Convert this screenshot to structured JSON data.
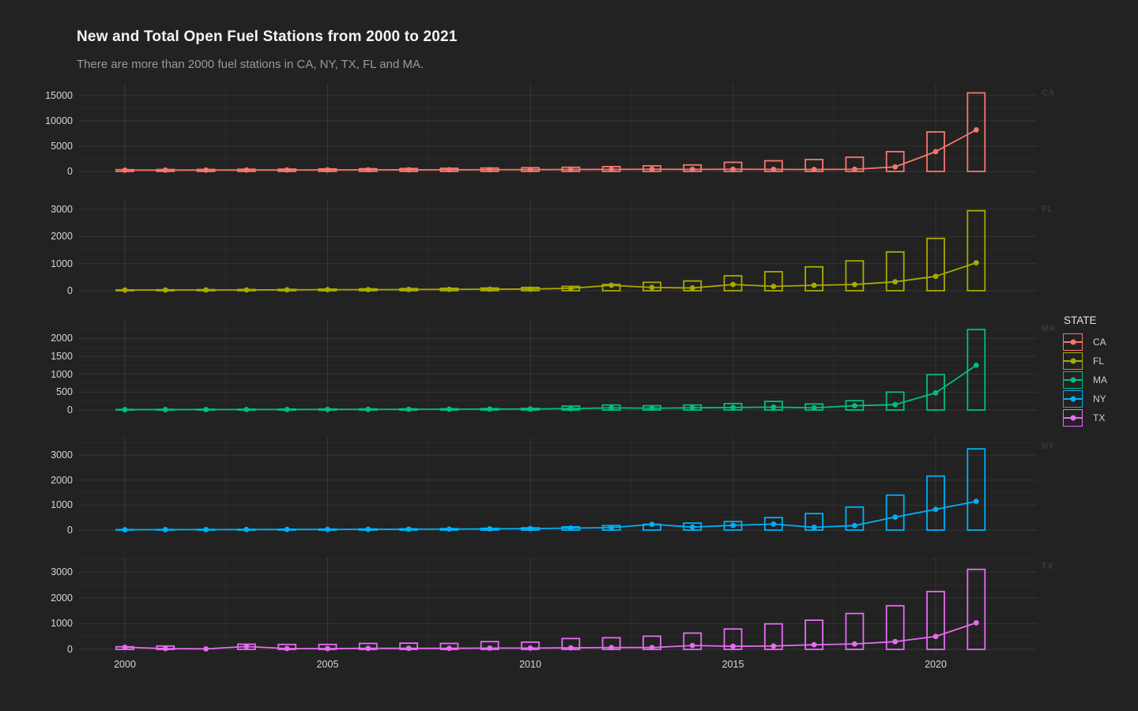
{
  "header": {
    "title": "New and Total Open Fuel Stations from 2000 to 2021",
    "subtitle": "There are more than 2000 fuel stations in CA, NY, TX, FL and MA."
  },
  "legend": {
    "title": "STATE",
    "entries": [
      {
        "label": "CA",
        "color": "#F8766D"
      },
      {
        "label": "FL",
        "color": "#A8AA00"
      },
      {
        "label": "MA",
        "color": "#00BF7D"
      },
      {
        "label": "NY",
        "color": "#00B0F6"
      },
      {
        "label": "TX",
        "color": "#E76BF3"
      }
    ]
  },
  "chart_data": {
    "type": "bar",
    "subtype": "faceted bar outline + line with points",
    "title": "New and Total Open Fuel Stations from 2000 to 2021",
    "subtitle": "There are more than 2000 fuel stations in CA, NY, TX, FL and MA.",
    "xlabel": "",
    "ylabel": "",
    "grid": true,
    "legend_position": "right",
    "legend_title": "STATE",
    "x": [
      2000,
      2001,
      2002,
      2003,
      2004,
      2005,
      2006,
      2007,
      2008,
      2009,
      2010,
      2011,
      2012,
      2013,
      2014,
      2015,
      2016,
      2017,
      2018,
      2019,
      2020,
      2021
    ],
    "x_ticks": [
      2000,
      2005,
      2010,
      2015,
      2020
    ],
    "x_minor_ticks": [
      2002.5,
      2007.5,
      2012.5,
      2017.5
    ],
    "facets": [
      {
        "state": "CA",
        "color": "#F8766D",
        "y_ticks": [
          0,
          5000,
          10000,
          15000
        ],
        "ylim": [
          0,
          17300
        ],
        "bars_total_open": [
          350,
          380,
          400,
          430,
          460,
          500,
          540,
          580,
          620,
          670,
          730,
          820,
          950,
          1100,
          1280,
          1800,
          2100,
          2350,
          2800,
          3900,
          7800,
          15500
        ],
        "line_new_stations": [
          250,
          260,
          270,
          280,
          290,
          300,
          310,
          320,
          330,
          340,
          360,
          380,
          400,
          430,
          400,
          430,
          410,
          390,
          430,
          900,
          3900,
          8200
        ]
      },
      {
        "state": "FL",
        "color": "#A8AA00",
        "y_ticks": [
          0,
          1000,
          2000,
          3000
        ],
        "ylim": [
          0,
          3350
        ],
        "bars_total_open": [
          30,
          35,
          40,
          45,
          50,
          60,
          70,
          80,
          90,
          100,
          120,
          160,
          230,
          310,
          360,
          550,
          700,
          880,
          1100,
          1430,
          1930,
          2950
        ],
        "line_new_stations": [
          25,
          25,
          30,
          30,
          35,
          40,
          40,
          45,
          50,
          55,
          60,
          90,
          200,
          120,
          100,
          230,
          160,
          200,
          230,
          330,
          530,
          1030
        ]
      },
      {
        "state": "MA",
        "color": "#00BF7D",
        "y_ticks": [
          0,
          500,
          1000,
          1500,
          2000
        ],
        "ylim": [
          0,
          2540
        ],
        "bars_total_open": [
          15,
          18,
          20,
          22,
          25,
          28,
          30,
          32,
          35,
          40,
          45,
          110,
          140,
          120,
          140,
          180,
          240,
          170,
          260,
          500,
          990,
          2250
        ],
        "line_new_stations": [
          10,
          12,
          12,
          14,
          15,
          16,
          18,
          20,
          22,
          25,
          28,
          40,
          60,
          50,
          60,
          70,
          80,
          60,
          120,
          150,
          480,
          1250
        ]
      },
      {
        "state": "NY",
        "color": "#00B0F6",
        "y_ticks": [
          0,
          1000,
          2000,
          3000
        ],
        "ylim": [
          0,
          3730
        ],
        "bars_total_open": [
          20,
          25,
          28,
          30,
          35,
          40,
          45,
          50,
          60,
          70,
          90,
          130,
          180,
          230,
          280,
          340,
          500,
          660,
          920,
          1400,
          2160,
          3250
        ],
        "line_new_stations": [
          15,
          18,
          20,
          22,
          25,
          28,
          30,
          35,
          40,
          50,
          60,
          80,
          100,
          230,
          120,
          190,
          240,
          110,
          180,
          520,
          830,
          1150
        ]
      },
      {
        "state": "TX",
        "color": "#E76BF3",
        "y_ticks": [
          0,
          1000,
          2000,
          3000
        ],
        "ylim": [
          0,
          3580
        ],
        "bars_total_open": [
          100,
          130,
          0,
          200,
          190,
          190,
          230,
          240,
          230,
          300,
          280,
          420,
          450,
          510,
          630,
          790,
          990,
          1130,
          1390,
          1690,
          2240,
          3100
        ],
        "line_new_stations": [
          80,
          30,
          20,
          110,
          30,
          30,
          40,
          40,
          40,
          50,
          50,
          60,
          70,
          70,
          150,
          120,
          130,
          180,
          210,
          300,
          500,
          1030
        ]
      }
    ]
  }
}
